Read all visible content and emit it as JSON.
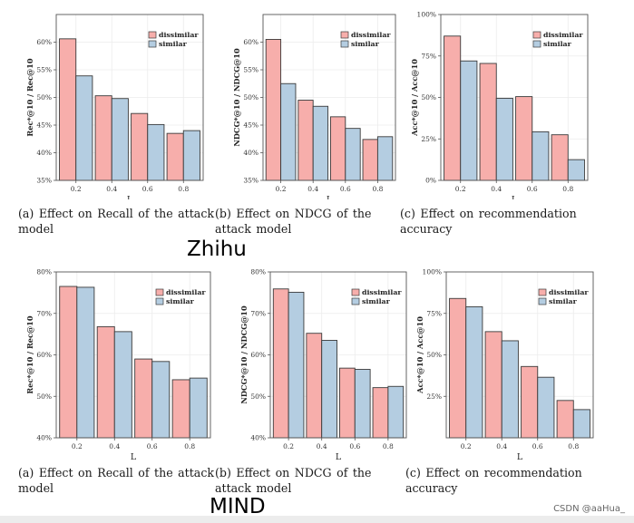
{
  "colors": {
    "dissimilar": "#f7aeab",
    "similar": "#b4cde1",
    "edge": "#3a3a3a",
    "grid": "#ececec"
  },
  "legend": {
    "dissimilar": "dissimilar",
    "similar": "similar"
  },
  "datasets": [
    {
      "name": "Zhihu"
    },
    {
      "name": "MIND"
    }
  ],
  "captions": {
    "a": "(a) Effect on Recall of the attack model",
    "b": "(b) Effect on NDCG of the attack model",
    "c": "(c) Effect on recommendation accuracy"
  },
  "watermark": "CSDN @aaHua_",
  "chart_data": [
    {
      "type": "bar",
      "dataset": "Zhihu",
      "panel": "a",
      "xlabel": "L",
      "ylabel": "Rec*@10 / Rec@10",
      "categories": [
        "0.2",
        "0.4",
        "0.6",
        "0.8"
      ],
      "ylim": [
        35,
        65
      ],
      "yticks": [
        "35%",
        "40%",
        "45%",
        "50%",
        "55%",
        "60%"
      ],
      "series": [
        {
          "name": "dissimilar",
          "values": [
            60.6,
            50.3,
            47.1,
            43.5
          ]
        },
        {
          "name": "similar",
          "values": [
            53.9,
            49.8,
            45.1,
            44.0
          ]
        }
      ]
    },
    {
      "type": "bar",
      "dataset": "Zhihu",
      "panel": "b",
      "xlabel": "L",
      "ylabel": "NDCG*@10 / NDCG@10",
      "categories": [
        "0.2",
        "0.4",
        "0.6",
        "0.8"
      ],
      "ylim": [
        35,
        65
      ],
      "yticks": [
        "35%",
        "40%",
        "45%",
        "50%",
        "55%",
        "60%"
      ],
      "series": [
        {
          "name": "dissimilar",
          "values": [
            60.5,
            49.5,
            46.5,
            42.4
          ]
        },
        {
          "name": "similar",
          "values": [
            52.5,
            48.4,
            44.4,
            42.9
          ]
        }
      ]
    },
    {
      "type": "bar",
      "dataset": "Zhihu",
      "panel": "c",
      "xlabel": "L",
      "ylabel": "Acc*@10 / Acc@10",
      "categories": [
        "0.2",
        "0.4",
        "0.6",
        "0.8"
      ],
      "ylim": [
        0,
        100
      ],
      "yticks": [
        "0%",
        "25%",
        "50%",
        "75%",
        "100%"
      ],
      "series": [
        {
          "name": "dissimilar",
          "values": [
            87.0,
            70.5,
            50.5,
            27.5
          ]
        },
        {
          "name": "similar",
          "values": [
            72.0,
            49.5,
            29.3,
            12.5
          ]
        }
      ]
    },
    {
      "type": "bar",
      "dataset": "MIND",
      "panel": "a",
      "xlabel": "L",
      "ylabel": "Rec*@10 / Rec@10",
      "categories": [
        "0.2",
        "0.4",
        "0.6",
        "0.8"
      ],
      "ylim": [
        40,
        80
      ],
      "yticks": [
        "40%",
        "50%",
        "60%",
        "70%",
        "80%"
      ],
      "series": [
        {
          "name": "dissimilar",
          "values": [
            76.5,
            66.8,
            59.0,
            54.0
          ]
        },
        {
          "name": "similar",
          "values": [
            76.3,
            65.6,
            58.4,
            54.4
          ]
        }
      ]
    },
    {
      "type": "bar",
      "dataset": "MIND",
      "panel": "b",
      "xlabel": "L",
      "ylabel": "NDCG*@10 / NDCG@10",
      "categories": [
        "0.2",
        "0.4",
        "0.6",
        "0.8"
      ],
      "ylim": [
        40,
        80
      ],
      "yticks": [
        "40%",
        "50%",
        "60%",
        "70%",
        "80%"
      ],
      "series": [
        {
          "name": "dissimilar",
          "values": [
            75.9,
            65.2,
            56.8,
            52.1
          ]
        },
        {
          "name": "similar",
          "values": [
            75.1,
            63.5,
            56.5,
            52.4
          ]
        }
      ]
    },
    {
      "type": "bar",
      "dataset": "MIND",
      "panel": "c",
      "xlabel": "L",
      "ylabel": "Acc*@10 / Acc@10",
      "categories": [
        "0.2",
        "0.4",
        "0.6",
        "0.8"
      ],
      "ylim": [
        0,
        100
      ],
      "yticks": [
        "25%",
        "50%",
        "75%",
        "100%"
      ],
      "series": [
        {
          "name": "dissimilar",
          "values": [
            84.0,
            64.0,
            43.0,
            22.5
          ]
        },
        {
          "name": "similar",
          "values": [
            79.0,
            58.5,
            36.5,
            17.0
          ]
        }
      ]
    }
  ]
}
